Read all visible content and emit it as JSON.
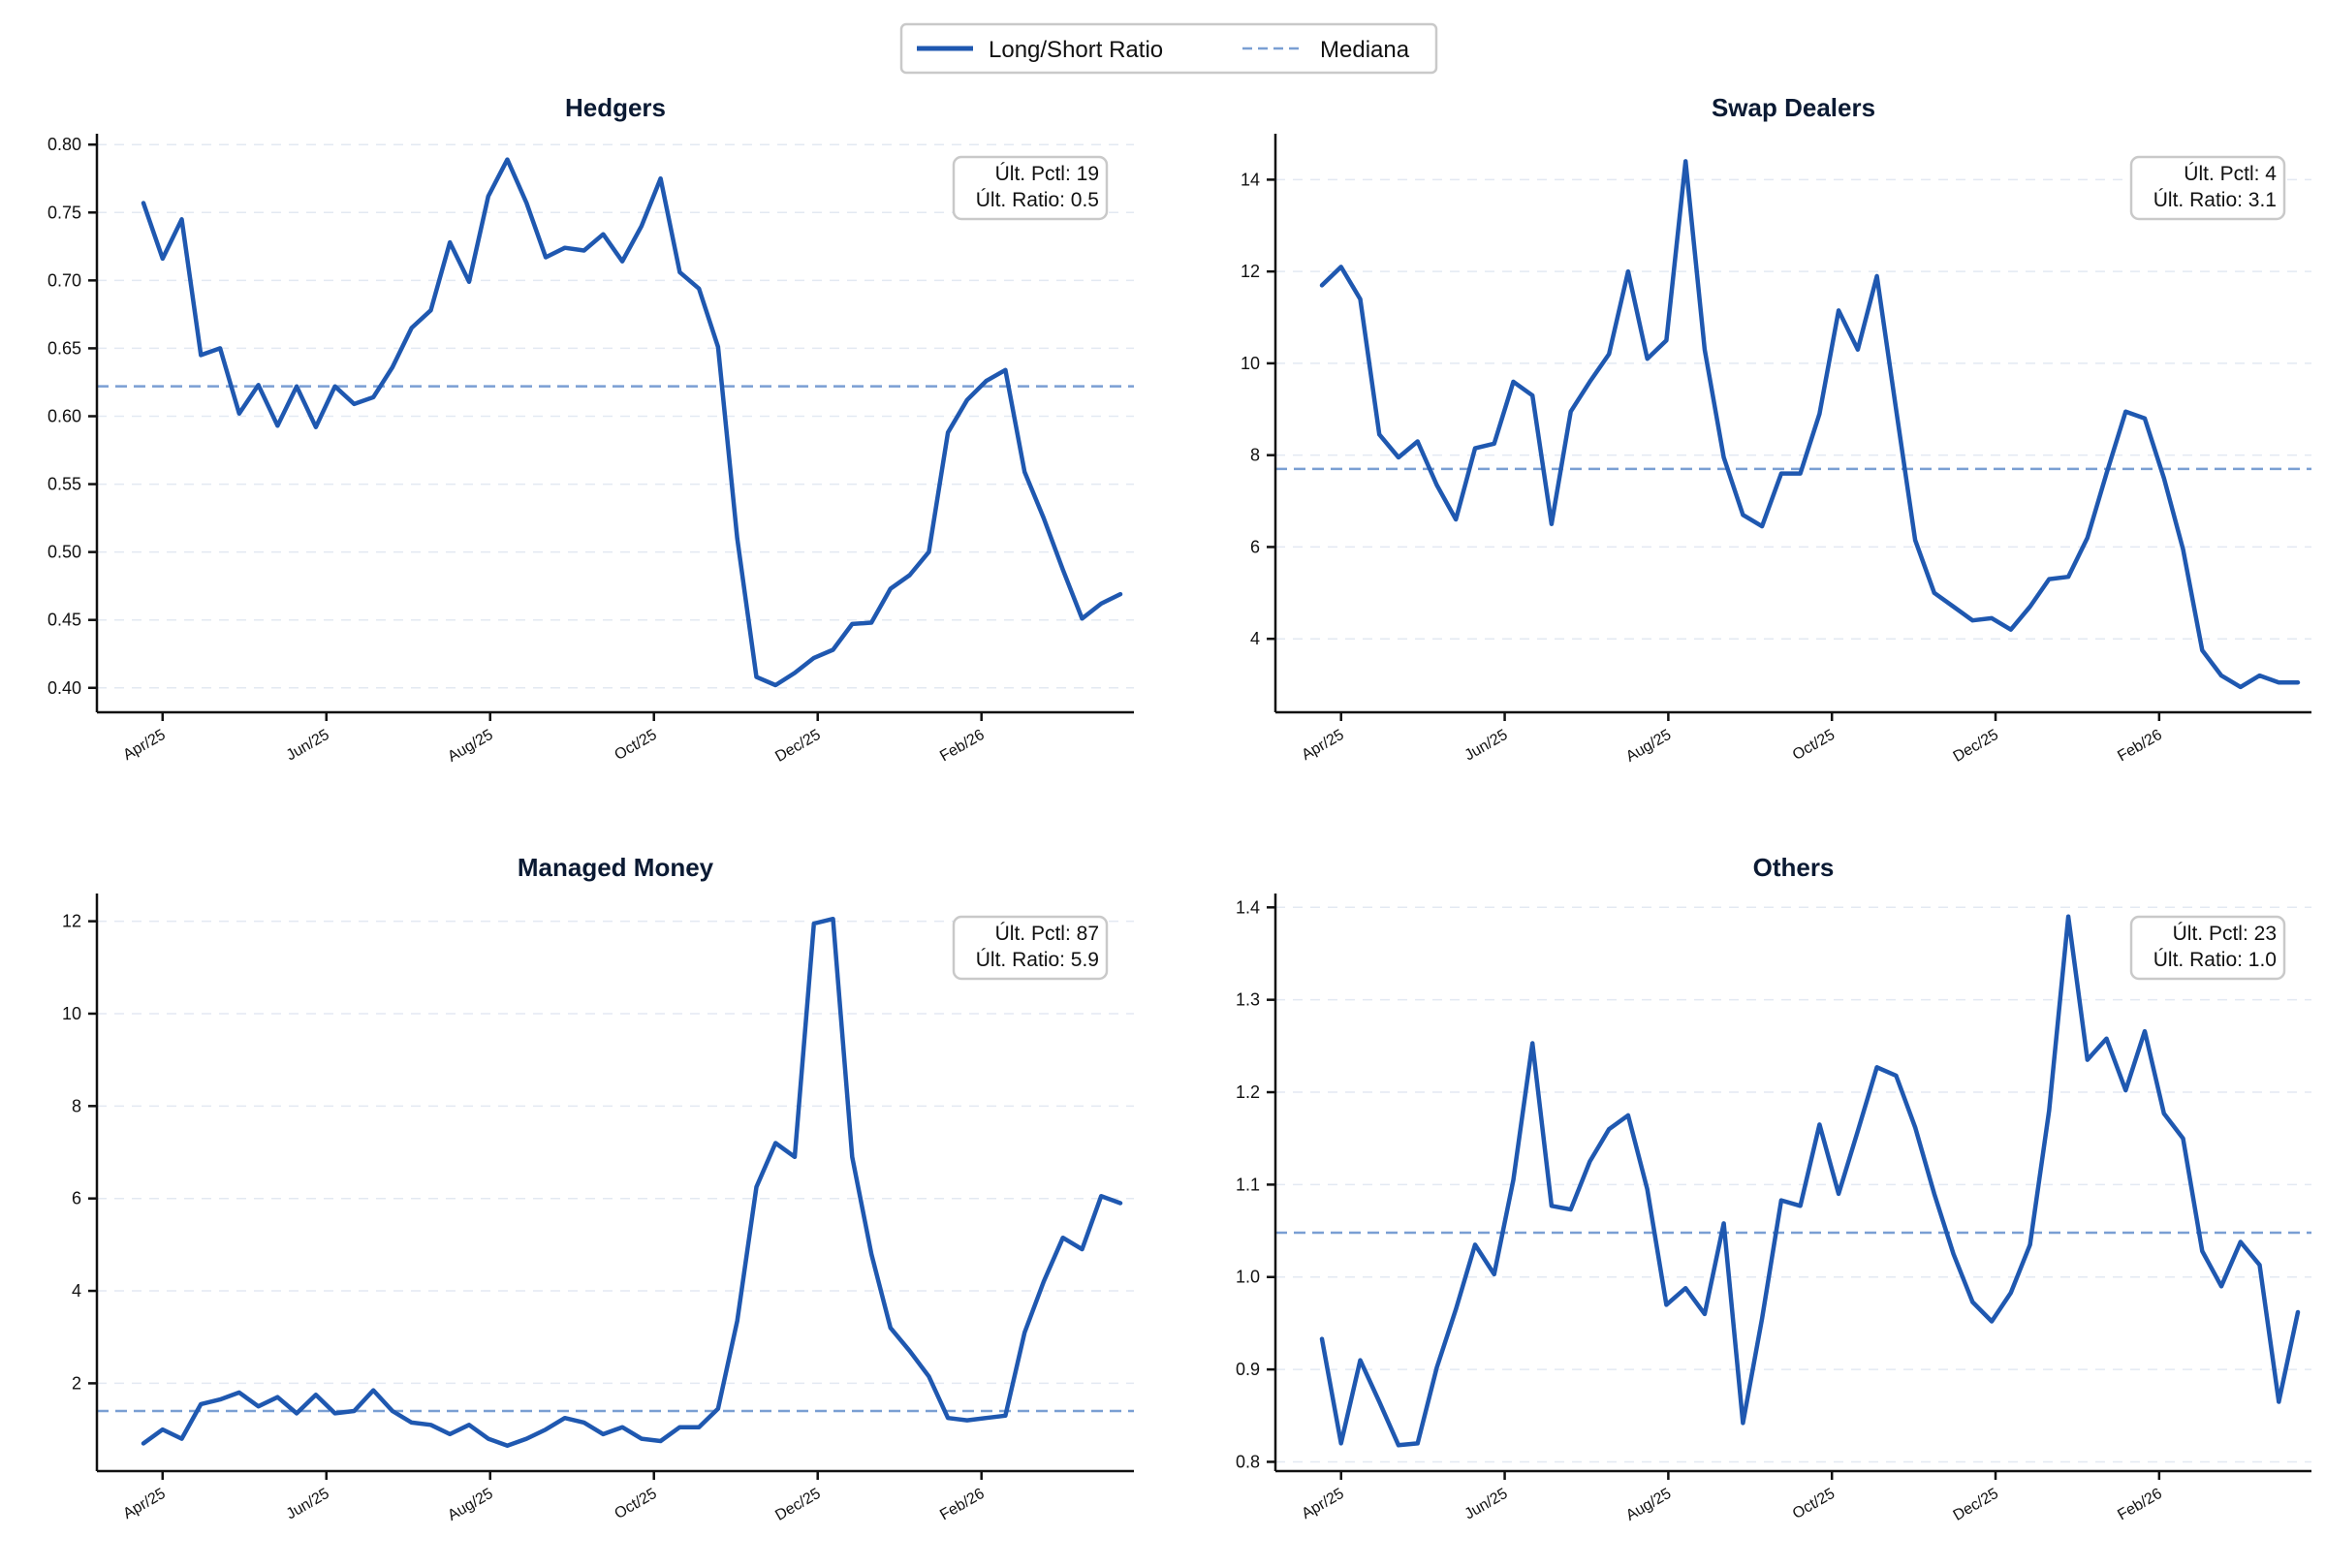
{
  "legend": {
    "series_label": "Long/Short Ratio",
    "median_label": "Mediana"
  },
  "colors": {
    "line": "#1f58b0",
    "median": "#7a9fd3"
  },
  "chart_data": [
    {
      "type": "line",
      "title": "Hedgers",
      "x_tick_labels": [
        "Apr/25",
        "Jun/25",
        "Aug/25",
        "Oct/25",
        "Dec/25",
        "Feb/26"
      ],
      "y_ticks": [
        "0.40",
        "0.45",
        "0.50",
        "0.55",
        "0.60",
        "0.65",
        "0.70",
        "0.75",
        "0.80"
      ],
      "ylim": [
        0.382,
        0.808
      ],
      "median": 0.622,
      "annotation": [
        "Últ. Pctl: 19",
        "Últ. Ratio: 0.5"
      ],
      "values": [
        0.757,
        0.716,
        0.745,
        0.645,
        0.65,
        0.602,
        0.623,
        0.593,
        0.622,
        0.592,
        0.622,
        0.609,
        0.614,
        0.636,
        0.665,
        0.678,
        0.728,
        0.699,
        0.762,
        0.789,
        0.757,
        0.717,
        0.724,
        0.722,
        0.734,
        0.714,
        0.74,
        0.775,
        0.706,
        0.694,
        0.651,
        0.51,
        0.408,
        0.402,
        0.411,
        0.422,
        0.428,
        0.447,
        0.448,
        0.473,
        0.483,
        0.5,
        0.588,
        0.612,
        0.626,
        0.634,
        0.559,
        0.525,
        0.487,
        0.451,
        0.462,
        0.469
      ]
    },
    {
      "type": "line",
      "title": "Swap Dealers",
      "x_tick_labels": [
        "Apr/25",
        "Jun/25",
        "Aug/25",
        "Oct/25",
        "Dec/25",
        "Feb/26"
      ],
      "y_ticks": [
        "4",
        "6",
        "8",
        "10",
        "12",
        "14"
      ],
      "ylim": [
        2.4,
        15.0
      ],
      "median": 7.7,
      "annotation": [
        "Últ. Pctl: 4",
        "Últ. Ratio: 3.1"
      ],
      "values": [
        11.7,
        12.1,
        11.4,
        8.45,
        7.95,
        8.3,
        7.35,
        6.6,
        8.15,
        8.25,
        9.6,
        9.3,
        6.5,
        8.95,
        9.6,
        10.2,
        12.0,
        10.1,
        10.5,
        14.4,
        10.3,
        7.95,
        6.7,
        6.45,
        7.6,
        7.6,
        8.9,
        11.15,
        10.3,
        11.9,
        9.0,
        6.15,
        5.0,
        4.7,
        4.4,
        4.45,
        4.2,
        4.7,
        5.3,
        5.35,
        6.2,
        7.6,
        8.95,
        8.8,
        7.5,
        5.95,
        3.75,
        3.2,
        2.95,
        3.2,
        3.05,
        3.05
      ]
    },
    {
      "type": "line",
      "title": "Managed Money",
      "x_tick_labels": [
        "Apr/25",
        "Jun/25",
        "Aug/25",
        "Oct/25",
        "Dec/25",
        "Feb/26"
      ],
      "y_ticks": [
        "2",
        "4",
        "6",
        "8",
        "10",
        "12"
      ],
      "ylim": [
        0.1,
        12.6
      ],
      "median": 1.4,
      "annotation": [
        "Últ. Pctl: 87",
        "Últ. Ratio: 5.9"
      ],
      "values": [
        0.7,
        1.0,
        0.8,
        1.55,
        1.65,
        1.8,
        1.5,
        1.7,
        1.35,
        1.75,
        1.35,
        1.4,
        1.85,
        1.4,
        1.15,
        1.1,
        0.9,
        1.1,
        0.8,
        0.65,
        0.8,
        1.0,
        1.25,
        1.15,
        0.9,
        1.05,
        0.8,
        0.75,
        1.05,
        1.05,
        1.45,
        3.35,
        6.25,
        7.2,
        6.9,
        11.95,
        12.05,
        6.9,
        4.8,
        3.2,
        2.7,
        2.15,
        1.25,
        1.2,
        1.25,
        1.3,
        3.1,
        4.2,
        5.15,
        4.9,
        6.05,
        5.9
      ]
    },
    {
      "type": "line",
      "title": "Others",
      "x_tick_labels": [
        "Apr/25",
        "Jun/25",
        "Aug/25",
        "Oct/25",
        "Dec/25",
        "Feb/26"
      ],
      "y_ticks": [
        "0.8",
        "0.9",
        "1.0",
        "1.1",
        "1.2",
        "1.3",
        "1.4"
      ],
      "ylim": [
        0.79,
        1.415
      ],
      "median": 1.048,
      "annotation": [
        "Últ. Pctl: 23",
        "Últ. Ratio: 1.0"
      ],
      "values": [
        0.933,
        0.82,
        0.91,
        0.865,
        0.818,
        0.82,
        0.902,
        0.965,
        1.035,
        1.003,
        1.105,
        1.253,
        1.077,
        1.073,
        1.125,
        1.16,
        1.175,
        1.095,
        0.97,
        0.988,
        0.96,
        1.058,
        0.842,
        0.955,
        1.083,
        1.077,
        1.165,
        1.09,
        1.158,
        1.227,
        1.218,
        1.162,
        1.09,
        1.025,
        0.973,
        0.952,
        0.983,
        1.035,
        1.18,
        1.39,
        1.235,
        1.258,
        1.202,
        1.266,
        1.177,
        1.15,
        1.028,
        0.99,
        1.038,
        1.013,
        0.865,
        0.962
      ]
    }
  ]
}
